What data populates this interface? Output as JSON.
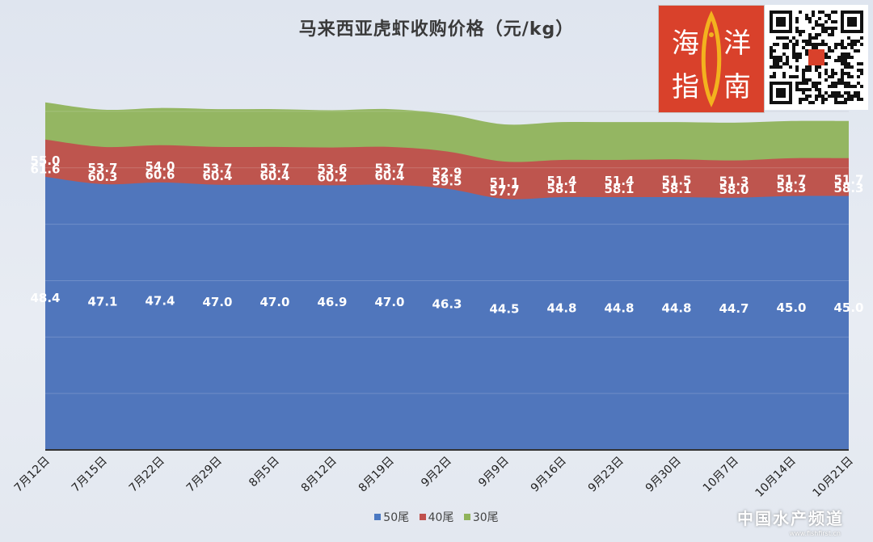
{
  "chart_data": {
    "type": "area",
    "stacked": true,
    "title": "马来西亚虎虾收购价格（元/kg）",
    "categories": [
      "7月12日",
      "7月15日",
      "7月22日",
      "7月29日",
      "8月5日",
      "8月12日",
      "8月19日",
      "9月2日",
      "9月9日",
      "9月16日",
      "9月23日",
      "9月30日",
      "10月7日",
      "10月14日",
      "10月21日"
    ],
    "series": [
      {
        "name": "50尾",
        "color": "#4a78c2",
        "values": [
          48.4,
          47.1,
          47.4,
          47.0,
          47.0,
          46.9,
          47.0,
          46.3,
          44.5,
          44.8,
          44.8,
          44.8,
          44.7,
          45.0,
          45.0
        ]
      },
      {
        "name": "40尾",
        "color": "#c0504d",
        "values": [
          55.0,
          53.7,
          54.0,
          53.7,
          53.7,
          53.6,
          53.7,
          52.9,
          51.1,
          51.4,
          51.4,
          51.5,
          51.3,
          51.7,
          51.7
        ]
      },
      {
        "name": "30尾",
        "color": "#8fb35a",
        "values": [
          61.6,
          60.3,
          60.6,
          60.4,
          60.4,
          60.2,
          60.4,
          59.5,
          57.7,
          58.1,
          58.1,
          58.1,
          58.0,
          58.3,
          58.3
        ]
      }
    ],
    "data_labels": true,
    "grid": true,
    "legend_position": "bottom"
  },
  "logo": {
    "text_top_left": "海",
    "text_top_right": "洋",
    "text_bottom_left": "指",
    "text_bottom_right": "南"
  },
  "watermark": {
    "text": "中国水产频道",
    "sub": "www.fishfirst.cn"
  }
}
